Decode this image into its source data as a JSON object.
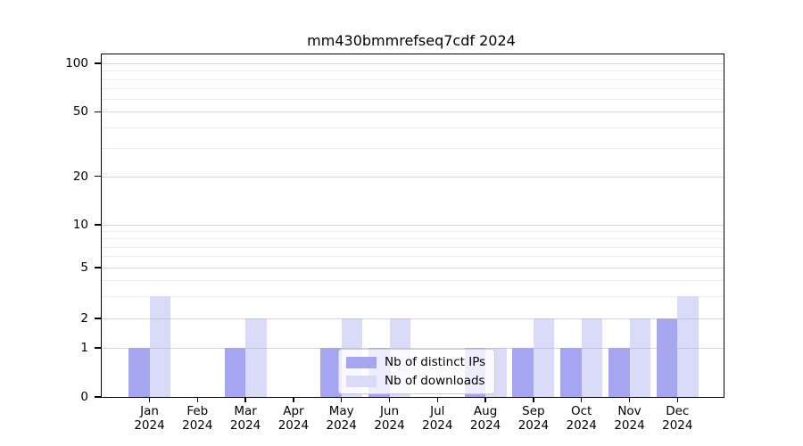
{
  "chart_data": {
    "type": "bar",
    "title": "mm430bmmrefseq7cdf 2024",
    "categories": [
      "Jan 2024",
      "Feb 2024",
      "Mar 2024",
      "Apr 2024",
      "May 2024",
      "Jun 2024",
      "Jul 2024",
      "Aug 2024",
      "Sep 2024",
      "Oct 2024",
      "Nov 2024",
      "Dec 2024"
    ],
    "series": [
      {
        "name": "Nb of distinct IPs",
        "color": "#a5a5f2",
        "values": [
          1,
          0,
          1,
          0,
          1,
          1,
          0,
          1,
          1,
          1,
          1,
          2
        ]
      },
      {
        "name": "Nb of downloads",
        "color": "#dadaf9",
        "values": [
          3,
          0,
          2,
          0,
          2,
          2,
          0,
          1,
          2,
          2,
          2,
          3
        ]
      }
    ],
    "yscale": "log",
    "ylim": [
      0,
      100
    ],
    "y_major_ticks": [
      0,
      1,
      2,
      5,
      10,
      20,
      50,
      100
    ],
    "y_minor_gridlines": [
      3,
      4,
      6,
      7,
      8,
      9,
      30,
      40,
      60,
      70,
      80,
      90
    ],
    "grid": true,
    "legend_position": "inside-bottom-center",
    "xlabel": "",
    "ylabel": ""
  },
  "colors": {
    "axis": "#000000",
    "background": "#ffffff",
    "bar_distinct_ips": "#a5a5f2",
    "bar_downloads": "#dadaf9"
  }
}
